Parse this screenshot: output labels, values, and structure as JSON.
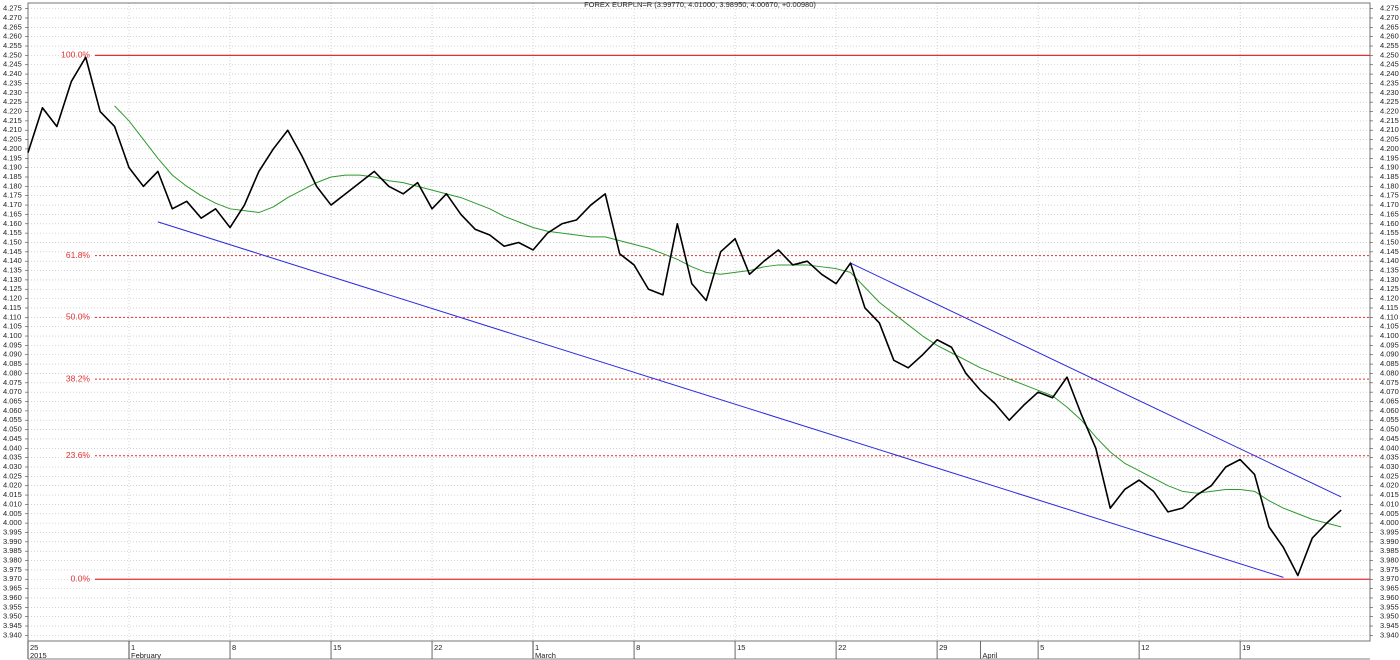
{
  "chart_data": {
    "type": "line",
    "title": "FOREX EURPLN=R (3.99770, 4.01000, 3.98950, 4.00670, +0.00980)",
    "x": [
      "2015-01-25",
      "2015-01-26",
      "2015-01-27",
      "2015-01-28",
      "2015-01-29",
      "2015-01-30",
      "2015-01-31",
      "2015-02-01",
      "2015-02-02",
      "2015-02-03",
      "2015-02-04",
      "2015-02-05",
      "2015-02-06",
      "2015-02-07",
      "2015-02-08",
      "2015-02-09",
      "2015-02-10",
      "2015-02-11",
      "2015-02-12",
      "2015-02-13",
      "2015-02-14",
      "2015-02-15",
      "2015-02-16",
      "2015-02-17",
      "2015-02-18",
      "2015-02-19",
      "2015-02-20",
      "2015-02-21",
      "2015-02-22",
      "2015-02-23",
      "2015-02-24",
      "2015-02-25",
      "2015-02-26",
      "2015-02-27",
      "2015-02-28",
      "2015-03-01",
      "2015-03-02",
      "2015-03-03",
      "2015-03-04",
      "2015-03-05",
      "2015-03-06",
      "2015-03-07",
      "2015-03-08",
      "2015-03-09",
      "2015-03-10",
      "2015-03-11",
      "2015-03-12",
      "2015-03-13",
      "2015-03-14",
      "2015-03-15",
      "2015-03-16",
      "2015-03-17",
      "2015-03-18",
      "2015-03-19",
      "2015-03-20",
      "2015-03-21",
      "2015-03-22",
      "2015-03-23",
      "2015-03-24",
      "2015-03-25",
      "2015-03-26",
      "2015-03-27",
      "2015-03-28",
      "2015-03-29",
      "2015-03-30",
      "2015-03-31",
      "2015-04-01",
      "2015-04-02",
      "2015-04-03",
      "2015-04-04",
      "2015-04-05",
      "2015-04-06",
      "2015-04-07",
      "2015-04-08",
      "2015-04-09",
      "2015-04-10",
      "2015-04-11",
      "2015-04-12",
      "2015-04-13",
      "2015-04-14",
      "2015-04-15",
      "2015-04-16",
      "2015-04-17",
      "2015-04-18",
      "2015-04-19",
      "2015-04-20",
      "2015-04-21",
      "2015-04-22",
      "2015-04-23",
      "2015-04-24",
      "2015-04-25",
      "2015-04-26"
    ],
    "series": [
      {
        "color": "#000000",
        "values": [
          4.198,
          4.222,
          4.212,
          4.236,
          4.249,
          4.22,
          4.212,
          4.19,
          4.18,
          4.188,
          4.168,
          4.172,
          4.163,
          4.168,
          4.158,
          4.17,
          4.188,
          4.2,
          4.21,
          4.196,
          4.18,
          4.17,
          4.176,
          4.182,
          4.188,
          4.18,
          4.176,
          4.182,
          4.168,
          4.176,
          4.165,
          4.157,
          4.154,
          4.148,
          4.15,
          4.146,
          4.155,
          4.16,
          4.162,
          4.17,
          4.176,
          4.144,
          4.138,
          4.125,
          4.122,
          4.16,
          4.128,
          4.119,
          4.145,
          4.152,
          4.133,
          4.14,
          4.146,
          4.138,
          4.14,
          4.133,
          4.128,
          4.139,
          4.115,
          4.107,
          4.087,
          4.083,
          4.09,
          4.098,
          4.094,
          4.08,
          4.071,
          4.064,
          4.055,
          4.063,
          4.07,
          4.067,
          4.078,
          4.058,
          4.04,
          4.008,
          4.018,
          4.023,
          4.017,
          4.006,
          4.008,
          4.015,
          4.02,
          4.03,
          4.034,
          4.026,
          3.998,
          3.987,
          3.972,
          3.992,
          4.0,
          4.007
        ]
      },
      {
        "color": "#2e9a2e",
        "values": [
          null,
          null,
          null,
          null,
          null,
          null,
          4.223,
          4.215,
          4.205,
          4.195,
          4.186,
          4.18,
          4.175,
          4.171,
          4.168,
          4.167,
          4.166,
          4.169,
          4.174,
          4.178,
          4.182,
          4.185,
          4.186,
          4.186,
          4.185,
          4.183,
          4.182,
          4.18,
          4.178,
          4.176,
          4.174,
          4.171,
          4.168,
          4.164,
          4.161,
          4.158,
          4.156,
          4.155,
          4.154,
          4.153,
          4.153,
          4.151,
          4.149,
          4.147,
          4.144,
          4.141,
          4.137,
          4.134,
          4.133,
          4.134,
          4.135,
          4.137,
          4.138,
          4.138,
          4.138,
          4.137,
          4.136,
          4.134,
          4.126,
          4.118,
          4.112,
          4.106,
          4.1,
          4.095,
          4.091,
          4.087,
          4.083,
          4.08,
          4.077,
          4.074,
          4.071,
          4.068,
          4.062,
          4.055,
          4.046,
          4.038,
          4.032,
          4.028,
          4.024,
          4.02,
          4.017,
          4.016,
          4.017,
          4.018,
          4.018,
          4.017,
          4.012,
          4.008,
          4.005,
          4.002,
          4.0,
          3.998
        ]
      }
    ],
    "trendlines": [
      {
        "color": "#2a2ae0",
        "x": [
          "2015-02-03",
          "2015-04-22"
        ],
        "values": [
          4.161,
          3.971
        ]
      },
      {
        "color": "#2a2ae0",
        "x": [
          "2015-03-23",
          "2015-04-26"
        ],
        "values": [
          4.139,
          4.014
        ]
      }
    ],
    "fib_levels": [
      {
        "label": "100.0%",
        "value": 4.25,
        "style": "solid"
      },
      {
        "label": "61.8%",
        "value": 4.143,
        "style": "dotted"
      },
      {
        "label": "50.0%",
        "value": 4.11,
        "style": "dotted"
      },
      {
        "label": "38.2%",
        "value": 4.077,
        "style": "dotted"
      },
      {
        "label": "23.6%",
        "value": 4.036,
        "style": "dotted"
      },
      {
        "label": "0.0%",
        "value": 3.97,
        "style": "solid"
      }
    ],
    "fib_color": "#e03030",
    "xlim": [
      "2015-01-25",
      "2015-04-28"
    ],
    "xticks": [
      {
        "value": "2015-01-25",
        "label": "25"
      },
      {
        "value": "2015-02-01",
        "label": "1"
      },
      {
        "value": "2015-02-08",
        "label": "8"
      },
      {
        "value": "2015-02-15",
        "label": "15"
      },
      {
        "value": "2015-02-22",
        "label": "22"
      },
      {
        "value": "2015-03-01",
        "label": "1"
      },
      {
        "value": "2015-03-08",
        "label": "8"
      },
      {
        "value": "2015-03-15",
        "label": "15"
      },
      {
        "value": "2015-03-22",
        "label": "22"
      },
      {
        "value": "2015-03-29",
        "label": "29"
      },
      {
        "value": "2015-04-05",
        "label": "5"
      },
      {
        "value": "2015-04-12",
        "label": "12"
      },
      {
        "value": "2015-04-19",
        "label": "19"
      }
    ],
    "month_labels": [
      {
        "value": "2015-01-25",
        "label": "2015"
      },
      {
        "value": "2015-02-01",
        "label": "February"
      },
      {
        "value": "2015-03-01",
        "label": "March"
      },
      {
        "value": "2015-04-01",
        "label": "April"
      }
    ],
    "ylim": [
      3.937,
      4.278
    ],
    "yticks": [
      4.275,
      {
        "value": 4.27,
        "label": "4.270"
      },
      4.265,
      {
        "value": 4.26,
        "label": "4.260"
      },
      4.255,
      {
        "value": 4.25,
        "label": "4.250"
      },
      4.245,
      {
        "value": 4.24,
        "label": "4.240"
      },
      4.235,
      {
        "value": 4.23,
        "label": "4.230"
      },
      4.225,
      {
        "value": 4.22,
        "label": "4.220"
      },
      4.215,
      {
        "value": 4.21,
        "label": "4.210"
      },
      4.205,
      {
        "value": 4.2,
        "label": "4.200"
      },
      4.195,
      {
        "value": 4.19,
        "label": "4.190"
      },
      4.185,
      {
        "value": 4.18,
        "label": "4.180"
      },
      4.175,
      {
        "value": 4.17,
        "label": "4.170"
      },
      4.165,
      {
        "value": 4.16,
        "label": "4.160"
      },
      4.155,
      {
        "value": 4.15,
        "label": "4.150"
      },
      4.145,
      {
        "value": 4.14,
        "label": "4.140"
      },
      4.135,
      {
        "value": 4.13,
        "label": "4.130"
      },
      4.125,
      {
        "value": 4.12,
        "label": "4.120"
      },
      4.115,
      {
        "value": 4.11,
        "label": "4.110"
      },
      4.105,
      {
        "value": 4.1,
        "label": "4.100"
      },
      4.095,
      {
        "value": 4.09,
        "label": "4.090"
      },
      4.085,
      {
        "value": 4.08,
        "label": "4.080"
      },
      4.075,
      {
        "value": 4.07,
        "label": "4.070"
      },
      4.065,
      {
        "value": 4.06,
        "label": "4.060"
      },
      4.055,
      {
        "value": 4.05,
        "label": "4.050"
      },
      4.045,
      {
        "value": 4.04,
        "label": "4.040"
      },
      4.035,
      {
        "value": 4.03,
        "label": "4.030"
      },
      4.025,
      {
        "value": 4.02,
        "label": "4.020"
      },
      4.015,
      {
        "value": 4.01,
        "label": "4.010"
      },
      4.005,
      {
        "value": 4,
        "label": "4.000"
      },
      3.995,
      {
        "value": 3.99,
        "label": "3.990"
      },
      3.985,
      {
        "value": 3.98,
        "label": "3.980"
      },
      3.975,
      {
        "value": 3.97,
        "label": "3.970"
      },
      3.965,
      {
        "value": 3.96,
        "label": "3.960"
      },
      3.955,
      {
        "value": 3.95,
        "label": "3.950"
      },
      3.945,
      {
        "value": 3.94,
        "label": "3.940"
      }
    ],
    "grid": true
  }
}
